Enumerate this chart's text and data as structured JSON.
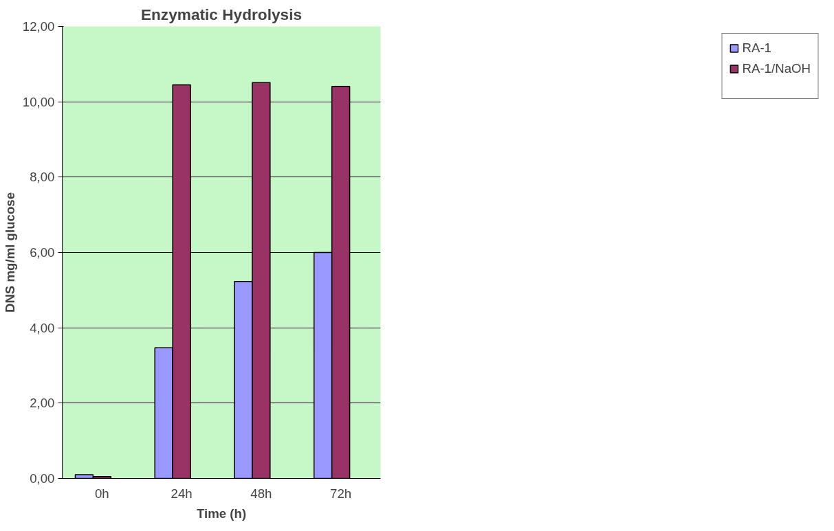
{
  "chart_data": {
    "type": "bar",
    "title": "Enzymatic Hydrolysis",
    "xlabel": "Time (h)",
    "ylabel": "DNS mg/ml glucose",
    "categories": [
      "0h",
      "24h",
      "48h",
      "72h"
    ],
    "series": [
      {
        "name": "RA-1",
        "color": "#9999ff",
        "values": [
          0.1,
          3.47,
          5.23,
          6.0
        ]
      },
      {
        "name": "RA-1/NaOH",
        "color": "#993366",
        "values": [
          0.05,
          10.45,
          10.51,
          10.41
        ]
      },
      {
        "color": "#ffffcc",
        "values": [
          null,
          null,
          null,
          null
        ]
      }
    ],
    "ylim": [
      0,
      12
    ],
    "yticks": [
      {
        "value": 0,
        "label": "0,00"
      },
      {
        "value": 2,
        "label": "2,00"
      },
      {
        "value": 4,
        "label": "4,00"
      },
      {
        "value": 6,
        "label": "6,00"
      },
      {
        "value": 8,
        "label": "8,00"
      },
      {
        "value": 10,
        "label": "10,00"
      },
      {
        "value": 12,
        "label": "12,00"
      }
    ],
    "grid": "y",
    "legend": "right"
  }
}
